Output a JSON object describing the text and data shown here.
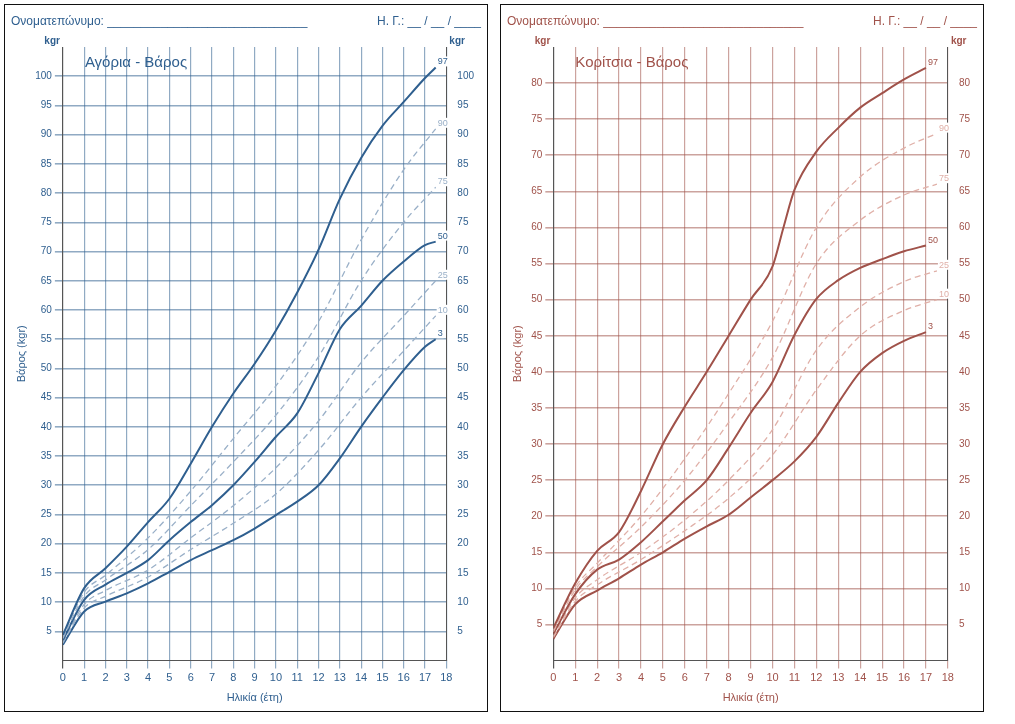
{
  "chart_data": [
    {
      "type": "line",
      "title": "Αγόρια - Βάρος",
      "xlabel": "Ηλικία (έτη)",
      "ylabel": "Βάρος (kgr)",
      "annotations": [
        "Ονοματεπώνυμο: ______________________________",
        "Η. Γ.: __ / __ / ____",
        "kgr",
        "kgr"
      ],
      "xlim": [
        0,
        18
      ],
      "xticks": [
        0,
        1,
        2,
        3,
        4,
        5,
        6,
        7,
        8,
        9,
        10,
        11,
        12,
        13,
        14,
        15,
        16,
        17,
        18
      ],
      "ylim": [
        0,
        105
      ],
      "yticks": [
        5,
        10,
        15,
        20,
        25,
        30,
        35,
        40,
        45,
        50,
        55,
        60,
        65,
        70,
        75,
        80,
        85,
        90,
        95,
        100
      ],
      "y2lim": [
        0,
        105
      ],
      "y2ticks": [
        5,
        10,
        15,
        20,
        25,
        30,
        35,
        40,
        45,
        50,
        55,
        60,
        65,
        70,
        75,
        80,
        85,
        90,
        95,
        100
      ],
      "grid": true,
      "legend": false,
      "marker": "none",
      "series": [
        {
          "name": "97",
          "color": "#2f5f8f",
          "line_style": "solid",
          "x": [
            0,
            1,
            2,
            3,
            4,
            5,
            6,
            7,
            8,
            9,
            10,
            11,
            12,
            13,
            14,
            15,
            16,
            17,
            17.5
          ],
          "values": [
            4.4,
            12.4,
            15.8,
            19.5,
            23.7,
            27.7,
            33.7,
            40,
            45.7,
            50.8,
            56.5,
            63,
            70.3,
            79,
            86,
            91.5,
            95.6,
            99.7,
            101.5
          ]
        },
        {
          "name": "90",
          "color": "#9ab0c8",
          "line_style": "dashed",
          "x": [
            0,
            1,
            2,
            4,
            6,
            8,
            10,
            12,
            14,
            16,
            17.5
          ],
          "values": [
            4.1,
            11.7,
            14.6,
            21,
            29,
            38,
            47,
            58,
            72,
            84,
            91
          ]
        },
        {
          "name": "75",
          "color": "#9ab0c8",
          "line_style": "dashed",
          "x": [
            0,
            1,
            2,
            4,
            6,
            8,
            10,
            12,
            14,
            16,
            17.5
          ],
          "values": [
            3.8,
            11,
            13.8,
            19,
            26.5,
            34,
            42,
            52,
            65,
            75,
            81
          ]
        },
        {
          "name": "50",
          "color": "#2f5f8f",
          "line_style": "solid",
          "x": [
            0,
            1,
            2,
            3,
            4,
            5,
            6,
            7,
            8,
            9,
            10,
            11,
            12,
            13,
            14,
            15,
            16,
            17,
            17.5
          ],
          "values": [
            3.5,
            10.4,
            13,
            15,
            17.2,
            20.6,
            23.7,
            26.6,
            30,
            34,
            38.3,
            42.3,
            49.2,
            56.7,
            60.7,
            65,
            68.3,
            71.1,
            71.7
          ]
        },
        {
          "name": "25",
          "color": "#9ab0c8",
          "line_style": "dashed",
          "x": [
            0,
            1,
            2,
            4,
            6,
            8,
            10,
            12,
            14,
            16,
            17.5
          ],
          "values": [
            3.2,
            9.6,
            12,
            15.5,
            21,
            26.5,
            33,
            41,
            51,
            59,
            65
          ]
        },
        {
          "name": "10",
          "color": "#9ab0c8",
          "line_style": "dashed",
          "x": [
            0,
            1,
            2,
            4,
            6,
            8,
            10,
            12,
            14,
            16,
            17.5
          ],
          "values": [
            3,
            9,
            11,
            14.3,
            19,
            23.5,
            28.5,
            36,
            45,
            53,
            59
          ]
        },
        {
          "name": "3",
          "color": "#2f5f8f",
          "line_style": "solid",
          "x": [
            0,
            1,
            2,
            3,
            4,
            5,
            6,
            7,
            8,
            9,
            10,
            11,
            12,
            13,
            14,
            15,
            16,
            17,
            17.5
          ],
          "values": [
            2.7,
            8.4,
            10.1,
            11.5,
            13.2,
            15.2,
            17.2,
            18.9,
            20.6,
            22.6,
            24.9,
            27.2,
            30,
            34.6,
            40,
            45,
            49.7,
            53.7,
            55
          ]
        }
      ]
    },
    {
      "type": "line",
      "title": "Κορίτσια - Βάρος",
      "xlabel": "Ηλικία (έτη)",
      "ylabel": "Βάρος (kgr)",
      "annotations": [
        "Ονοματεπώνυμο: ______________________________",
        "Η. Γ.: __ / __ / ____",
        "kgr",
        "kgr"
      ],
      "xlim": [
        0,
        18
      ],
      "xticks": [
        0,
        1,
        2,
        3,
        4,
        5,
        6,
        7,
        8,
        9,
        10,
        11,
        12,
        13,
        14,
        15,
        16,
        17,
        18
      ],
      "ylim": [
        0,
        85
      ],
      "yticks": [
        5,
        10,
        15,
        20,
        25,
        30,
        35,
        40,
        45,
        50,
        55,
        60,
        65,
        70,
        75,
        80
      ],
      "y2lim": [
        0,
        85
      ],
      "y2ticks": [
        5,
        10,
        15,
        20,
        25,
        30,
        35,
        40,
        45,
        50,
        55,
        60,
        65,
        70,
        75,
        80
      ],
      "grid": true,
      "legend": false,
      "marker": "none",
      "series": [
        {
          "name": "97",
          "color": "#a0524a",
          "line_style": "solid",
          "x": [
            0,
            1,
            2,
            3,
            4,
            5,
            6,
            7,
            8,
            9,
            10,
            10.5,
            11,
            12,
            13,
            14,
            15,
            16,
            17
          ],
          "values": [
            4.5,
            10.7,
            15.2,
            17.8,
            23.5,
            30,
            35.2,
            40,
            45,
            50,
            54.6,
            60,
            65.2,
            70.5,
            73.8,
            76.6,
            78.6,
            80.5,
            82.1
          ]
        },
        {
          "name": "90",
          "color": "#e0b0a8",
          "line_style": "dashed",
          "x": [
            0,
            1,
            2,
            4,
            6,
            8,
            10,
            12,
            14,
            16,
            17.5
          ],
          "values": [
            4.2,
            10.2,
            13.5,
            20,
            28,
            37,
            47,
            60,
            67,
            71,
            73
          ]
        },
        {
          "name": "75",
          "color": "#e0b0a8",
          "line_style": "dashed",
          "x": [
            0,
            1,
            2,
            4,
            6,
            8,
            10,
            12,
            14,
            16,
            17.5
          ],
          "values": [
            4,
            9.8,
            13,
            18.5,
            25,
            33,
            42,
            55,
            61,
            64.5,
            66
          ]
        },
        {
          "name": "50",
          "color": "#a0524a",
          "line_style": "solid",
          "x": [
            0,
            1,
            2,
            3,
            4,
            5,
            6,
            7,
            8,
            9,
            10,
            11,
            12,
            13,
            14,
            15,
            16,
            17
          ],
          "values": [
            3.7,
            9.2,
            12.6,
            14,
            16.4,
            19.3,
            22.2,
            25,
            29.5,
            34.3,
            38.6,
            45.1,
            50.1,
            52.7,
            54.4,
            55.6,
            56.7,
            57.5
          ]
        },
        {
          "name": "25",
          "color": "#e0b0a8",
          "line_style": "dashed",
          "x": [
            0,
            1,
            2,
            4,
            6,
            8,
            10,
            12,
            14,
            16,
            17.5
          ],
          "values": [
            3.4,
            8.7,
            11.2,
            15,
            19.5,
            25,
            32,
            43,
            49,
            52.5,
            54
          ]
        },
        {
          "name": "10",
          "color": "#e0b0a8",
          "line_style": "dashed",
          "x": [
            0,
            1,
            2,
            4,
            6,
            8,
            10,
            12,
            14,
            16,
            17.5
          ],
          "values": [
            3.2,
            8.2,
            10.5,
            14,
            18,
            22.5,
            28.5,
            37.5,
            45,
            48.5,
            50
          ]
        },
        {
          "name": "3",
          "color": "#a0524a",
          "line_style": "solid",
          "x": [
            0,
            1,
            2,
            3,
            4,
            5,
            6,
            7,
            8,
            9,
            10,
            11,
            12,
            13,
            14,
            15,
            16,
            17
          ],
          "values": [
            3,
            7.8,
            9.7,
            11.4,
            13.3,
            15,
            16.9,
            18.6,
            20.2,
            22.6,
            25,
            27.6,
            31,
            35.7,
            40,
            42.6,
            44.3,
            45.5
          ]
        }
      ]
    }
  ]
}
